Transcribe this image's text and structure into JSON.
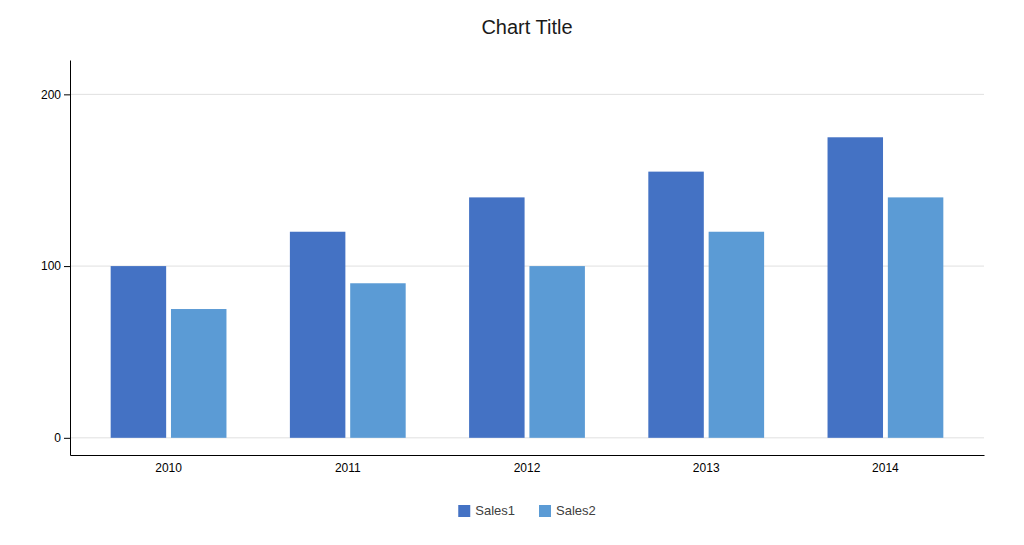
{
  "chart_data": {
    "type": "bar",
    "title": "Chart Title",
    "categories": [
      "2010",
      "2011",
      "2012",
      "2013",
      "2014"
    ],
    "series": [
      {
        "name": "Sales1",
        "color": "#4472C4",
        "values": [
          100,
          120,
          140,
          155,
          175
        ]
      },
      {
        "name": "Sales2",
        "color": "#5B9BD5",
        "values": [
          75,
          90,
          100,
          120,
          140
        ]
      }
    ],
    "ylim": [
      -10,
      220
    ],
    "yticks": [
      0,
      100,
      200
    ],
    "grid": true,
    "legend": "bottom"
  }
}
